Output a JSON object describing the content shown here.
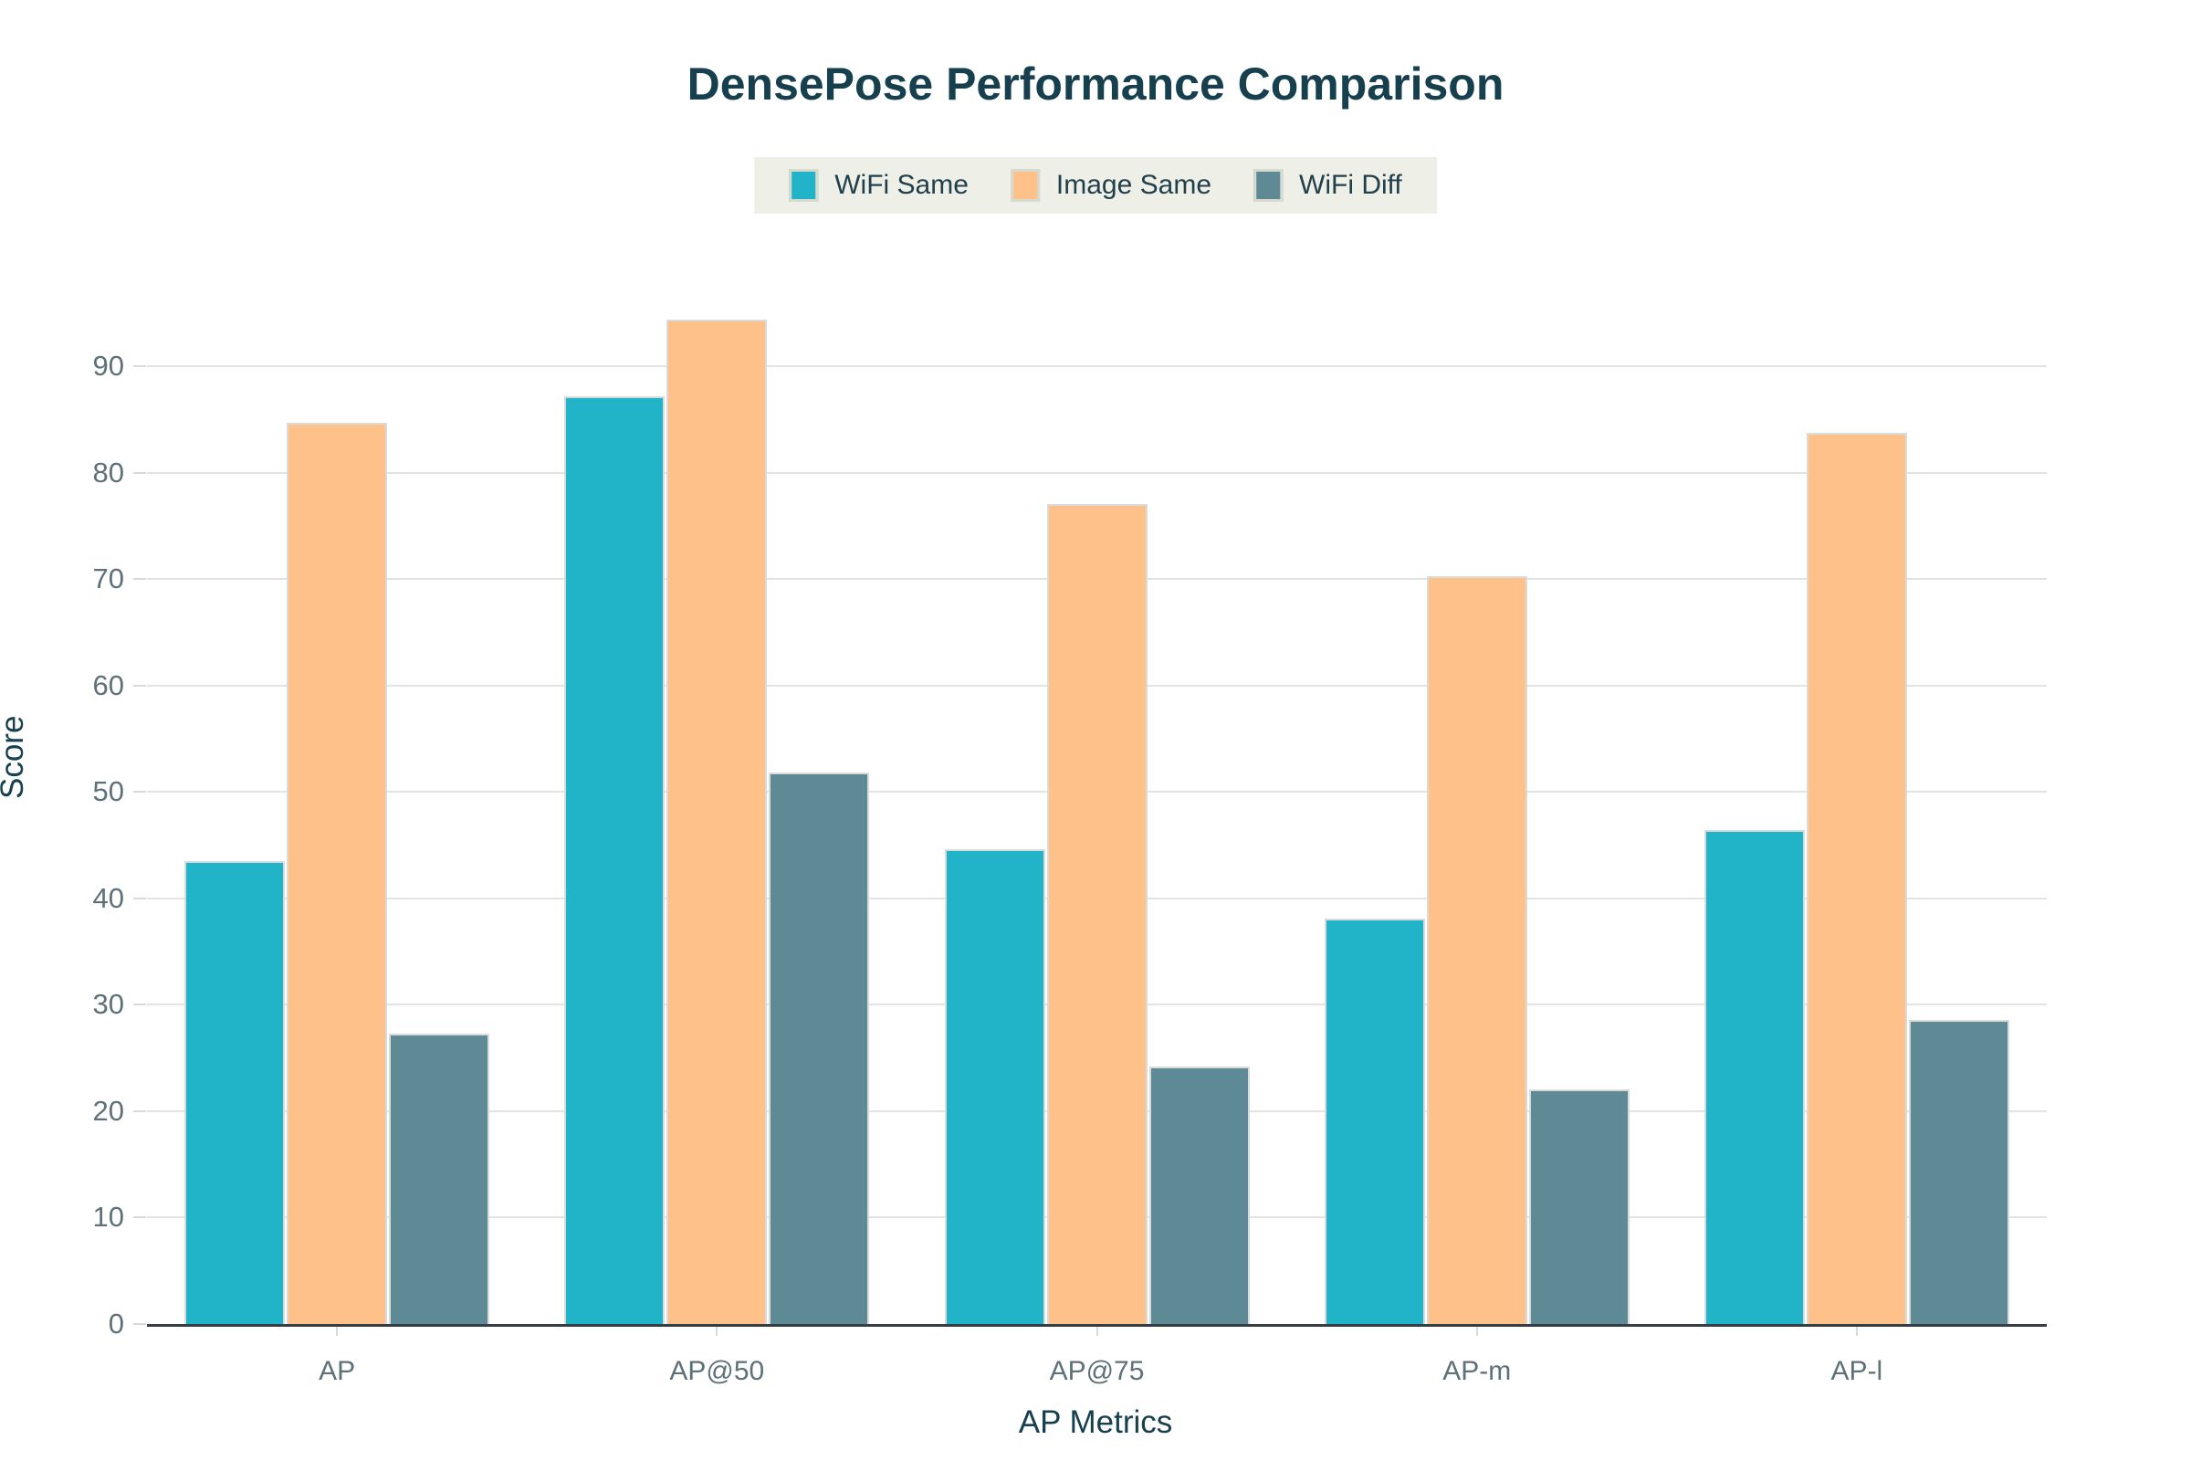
{
  "chart": {
    "title": "DensePose Performance Comparison",
    "x_axis_title": "AP Metrics",
    "y_axis_title": "Score"
  },
  "chart_data": {
    "type": "bar",
    "title": "DensePose Performance Comparison",
    "xlabel": "AP Metrics",
    "ylabel": "Score",
    "categories": [
      "AP",
      "AP@50",
      "AP@75",
      "AP-m",
      "AP-l"
    ],
    "series": [
      {
        "name": "WiFi Same",
        "color": "#21b3c7",
        "values": [
          43.5,
          87.2,
          44.6,
          38.1,
          46.4
        ]
      },
      {
        "name": "Image Same",
        "color": "#fdc189",
        "values": [
          84.7,
          94.4,
          77.1,
          70.3,
          83.8
        ]
      },
      {
        "name": "WiFi Diff",
        "color": "#5d8a94",
        "values": [
          27.3,
          51.8,
          24.2,
          22.1,
          28.6
        ]
      }
    ],
    "ylim": [
      0,
      98.7
    ],
    "yticks": [
      0,
      10,
      20,
      30,
      40,
      50,
      60,
      70,
      80,
      90
    ],
    "grid": true,
    "legend_position": "top-center",
    "colors": {
      "title_text": "#16404e",
      "tick_text": "#5e7078",
      "gridline": "#e3e3e3",
      "axis_line": "#343e44",
      "legend_background": "#eef0e8"
    }
  }
}
